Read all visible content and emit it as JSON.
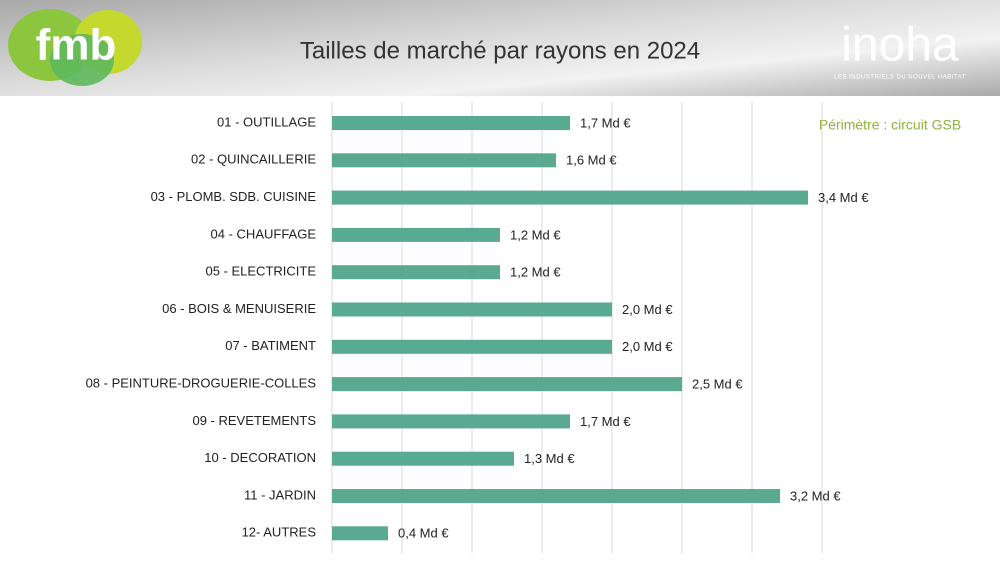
{
  "header": {
    "logo_left": "fmb",
    "logo_right": "inoha",
    "logo_right_tagline": "LES INDUSTRIELS DU NOUVEL HABITAT"
  },
  "chart_data": {
    "type": "bar",
    "orientation": "horizontal",
    "title": "Tailles de marché par rayons en 2024",
    "subtitle": "Périmètre : circuit GSB",
    "categories": [
      "01 - OUTILLAGE",
      "02 - QUINCAILLERIE",
      "03 - PLOMB. SDB. CUISINE",
      "04 - CHAUFFAGE",
      "05 - ELECTRICITE",
      "06 - BOIS & MENUISERIE",
      "07 - BATIMENT",
      "08 - PEINTURE-DROGUERIE-COLLES",
      "09 - REVETEMENTS",
      "10 - DECORATION",
      "11 - JARDIN",
      "12- AUTRES"
    ],
    "values": [
      1.7,
      1.6,
      3.4,
      1.2,
      1.2,
      2.0,
      2.0,
      2.5,
      1.7,
      1.3,
      3.2,
      0.4
    ],
    "value_labels": [
      "1,7  Md €",
      "1,6  Md €",
      "3,4  Md €",
      "1,2  Md €",
      "1,2  Md €",
      "2,0  Md €",
      "2,0  Md €",
      "2,5  Md €",
      "1,7  Md €",
      "1,3  Md €",
      "3,2  Md €",
      "0,4  Md €"
    ],
    "color": "#5aaa92",
    "xlim": [
      0,
      3.5
    ],
    "xticks": [
      0,
      0.5,
      1,
      1.5,
      2,
      2.5,
      3,
      3.5
    ],
    "grid": true
  }
}
